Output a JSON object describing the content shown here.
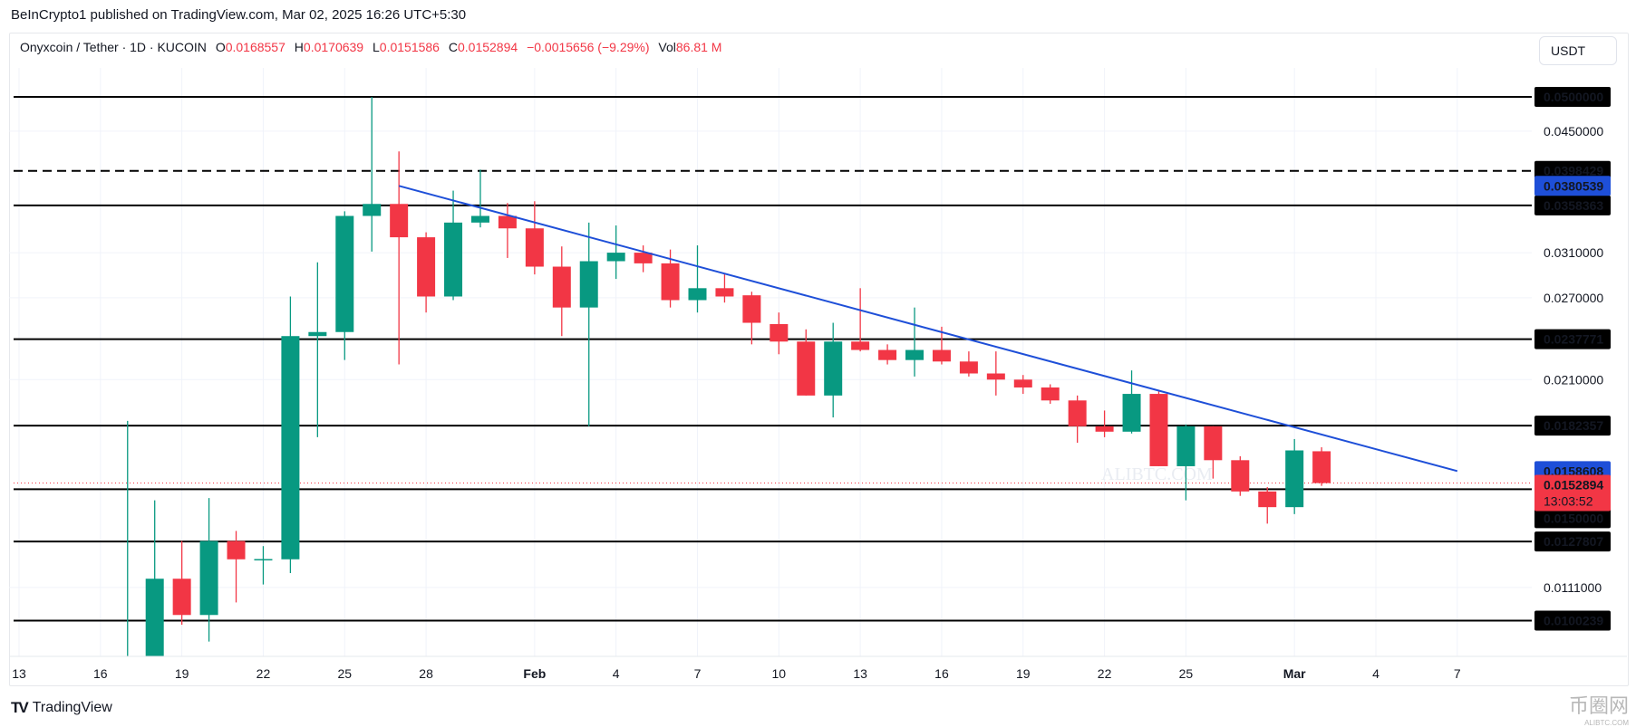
{
  "published": "BeInCrypto1 published on TradingView.com, Mar 02, 2025 16:26 UTC+5:30",
  "legend": {
    "symbol": "Onyxcoin / Tether · 1D · KUCOIN",
    "o_label": "O",
    "o": "0.0168557",
    "h_label": "H",
    "h": "0.0170639",
    "l_label": "L",
    "l": "0.0151586",
    "c_label": "C",
    "c": "0.0152894",
    "change": "−0.0015656 (−9.29%)",
    "vol_label": "Vol",
    "vol": "86.81 M"
  },
  "currency": "USDT",
  "footer": {
    "brand": "TradingView",
    "watermark": "ALIBTC.COM",
    "badge": "币圈网",
    "badge_sub": "ALIBTC.COM"
  },
  "colors": {
    "up": "#089981",
    "down": "#F23645",
    "trend": "#1E4FD8",
    "level": "#000000"
  },
  "chart_data": {
    "type": "candlestick",
    "scale": "log",
    "ylim": [
      0.0088,
      0.0545
    ],
    "x_ticks": [
      {
        "day": 0,
        "label": "13"
      },
      {
        "day": 3,
        "label": "16"
      },
      {
        "day": 6,
        "label": "19"
      },
      {
        "day": 9,
        "label": "22"
      },
      {
        "day": 12,
        "label": "25"
      },
      {
        "day": 15,
        "label": "28"
      },
      {
        "day": 19,
        "label": "Feb",
        "bold": true
      },
      {
        "day": 22,
        "label": "4"
      },
      {
        "day": 25,
        "label": "7"
      },
      {
        "day": 28,
        "label": "10"
      },
      {
        "day": 31,
        "label": "13"
      },
      {
        "day": 34,
        "label": "16"
      },
      {
        "day": 37,
        "label": "19"
      },
      {
        "day": 40,
        "label": "22"
      },
      {
        "day": 43,
        "label": "25"
      },
      {
        "day": 47,
        "label": "Mar",
        "bold": true
      },
      {
        "day": 50,
        "label": "4"
      },
      {
        "day": 53,
        "label": "7"
      }
    ],
    "y_ticks": [
      "0.0450000",
      "0.0310000",
      "0.0270000",
      "0.0210000",
      "0.0111000"
    ],
    "candles": [
      {
        "d": 4,
        "o": 0.0085,
        "h": 0.0185,
        "l": 0.008,
        "c": 0.0088
      },
      {
        "d": 5,
        "o": 0.0088,
        "h": 0.0145,
        "l": 0.0085,
        "c": 0.0114
      },
      {
        "d": 6,
        "o": 0.0114,
        "h": 0.0128,
        "l": 0.0099,
        "c": 0.0102
      },
      {
        "d": 7,
        "o": 0.0102,
        "h": 0.0146,
        "l": 0.0094,
        "c": 0.0128
      },
      {
        "d": 8,
        "o": 0.0128,
        "h": 0.0132,
        "l": 0.0106,
        "c": 0.0121
      },
      {
        "d": 9,
        "o": 0.0121,
        "h": 0.0126,
        "l": 0.0112,
        "c": 0.01211
      },
      {
        "d": 10,
        "o": 0.0121,
        "h": 0.0271,
        "l": 0.0116,
        "c": 0.024
      },
      {
        "d": 11,
        "o": 0.024,
        "h": 0.0301,
        "l": 0.0176,
        "c": 0.0243
      },
      {
        "d": 12,
        "o": 0.0243,
        "h": 0.0352,
        "l": 0.0223,
        "c": 0.0347
      },
      {
        "d": 13,
        "o": 0.0347,
        "h": 0.05,
        "l": 0.0311,
        "c": 0.036
      },
      {
        "d": 14,
        "o": 0.036,
        "h": 0.0423,
        "l": 0.022,
        "c": 0.0325
      },
      {
        "d": 15,
        "o": 0.0325,
        "h": 0.033,
        "l": 0.0258,
        "c": 0.0271
      },
      {
        "d": 16,
        "o": 0.0271,
        "h": 0.0375,
        "l": 0.0268,
        "c": 0.034
      },
      {
        "d": 17,
        "o": 0.034,
        "h": 0.04,
        "l": 0.0335,
        "c": 0.0347
      },
      {
        "d": 18,
        "o": 0.0347,
        "h": 0.0361,
        "l": 0.0305,
        "c": 0.0334
      },
      {
        "d": 19,
        "o": 0.0334,
        "h": 0.0363,
        "l": 0.029,
        "c": 0.0297
      },
      {
        "d": 20,
        "o": 0.0297,
        "h": 0.0316,
        "l": 0.024,
        "c": 0.0262
      },
      {
        "d": 21,
        "o": 0.0262,
        "h": 0.034,
        "l": 0.0182,
        "c": 0.0302
      },
      {
        "d": 22,
        "o": 0.0302,
        "h": 0.0337,
        "l": 0.0286,
        "c": 0.031
      },
      {
        "d": 23,
        "o": 0.031,
        "h": 0.0317,
        "l": 0.0292,
        "c": 0.03
      },
      {
        "d": 24,
        "o": 0.03,
        "h": 0.0313,
        "l": 0.0262,
        "c": 0.0268
      },
      {
        "d": 25,
        "o": 0.0268,
        "h": 0.0317,
        "l": 0.0258,
        "c": 0.0278
      },
      {
        "d": 26,
        "o": 0.0278,
        "h": 0.0291,
        "l": 0.0266,
        "c": 0.0271
      },
      {
        "d": 27,
        "o": 0.0272,
        "h": 0.0275,
        "l": 0.0234,
        "c": 0.025
      },
      {
        "d": 28,
        "o": 0.0249,
        "h": 0.0258,
        "l": 0.0227,
        "c": 0.0236
      },
      {
        "d": 29,
        "o": 0.0236,
        "h": 0.0245,
        "l": 0.02,
        "c": 0.02
      },
      {
        "d": 30,
        "o": 0.02,
        "h": 0.025,
        "l": 0.0187,
        "c": 0.0236
      },
      {
        "d": 31,
        "o": 0.0236,
        "h": 0.0278,
        "l": 0.0229,
        "c": 0.023
      },
      {
        "d": 32,
        "o": 0.023,
        "h": 0.0234,
        "l": 0.022,
        "c": 0.0223
      },
      {
        "d": 33,
        "o": 0.0223,
        "h": 0.0262,
        "l": 0.0212,
        "c": 0.023
      },
      {
        "d": 34,
        "o": 0.023,
        "h": 0.0247,
        "l": 0.022,
        "c": 0.0222
      },
      {
        "d": 35,
        "o": 0.0222,
        "h": 0.0229,
        "l": 0.0212,
        "c": 0.0214
      },
      {
        "d": 36,
        "o": 0.0214,
        "h": 0.0229,
        "l": 0.02,
        "c": 0.021
      },
      {
        "d": 37,
        "o": 0.021,
        "h": 0.0213,
        "l": 0.0201,
        "c": 0.0205
      },
      {
        "d": 38,
        "o": 0.0205,
        "h": 0.0207,
        "l": 0.0195,
        "c": 0.0197
      },
      {
        "d": 39,
        "o": 0.0197,
        "h": 0.02,
        "l": 0.0173,
        "c": 0.0182
      },
      {
        "d": 40,
        "o": 0.0182,
        "h": 0.0191,
        "l": 0.0176,
        "c": 0.0179
      },
      {
        "d": 41,
        "o": 0.0179,
        "h": 0.0216,
        "l": 0.0178,
        "c": 0.0201
      },
      {
        "d": 42,
        "o": 0.0201,
        "h": 0.0203,
        "l": 0.0161,
        "c": 0.0161
      },
      {
        "d": 43,
        "o": 0.0161,
        "h": 0.0183,
        "l": 0.0145,
        "c": 0.0182
      },
      {
        "d": 44,
        "o": 0.0182,
        "h": 0.0182,
        "l": 0.0155,
        "c": 0.0164
      },
      {
        "d": 45,
        "o": 0.0164,
        "h": 0.0166,
        "l": 0.0147,
        "c": 0.0149
      },
      {
        "d": 46,
        "o": 0.0149,
        "h": 0.0151,
        "l": 0.0135,
        "c": 0.0142
      },
      {
        "d": 47,
        "o": 0.0142,
        "h": 0.0175,
        "l": 0.0139,
        "c": 0.0169
      },
      {
        "d": 48,
        "o": 0.0168557,
        "h": 0.0170639,
        "l": 0.0151586,
        "c": 0.0152894
      }
    ],
    "levels": [
      {
        "price": 0.05,
        "label": "0.0500000"
      },
      {
        "price": 0.0398429,
        "label": "0.0398429",
        "dashed": true
      },
      {
        "price": 0.0358363,
        "label": "0.0358363"
      },
      {
        "price": 0.0237771,
        "label": "0.0237771"
      },
      {
        "price": 0.0182357,
        "label": "0.0182357"
      },
      {
        "price": 0.015,
        "label": "0.0150000"
      },
      {
        "price": 0.0127807,
        "label": "0.0127807"
      },
      {
        "price": 0.0100239,
        "label": "0.0100239"
      }
    ],
    "trendline": {
      "start": {
        "d": 14,
        "price": 0.0380539,
        "label": "0.0380539"
      },
      "end": {
        "d": 53,
        "price": 0.0158608,
        "label": "0.0158608"
      }
    },
    "last_price": {
      "price": 0.0152894,
      "label": "0.0152894",
      "countdown": "13:03:52"
    }
  }
}
